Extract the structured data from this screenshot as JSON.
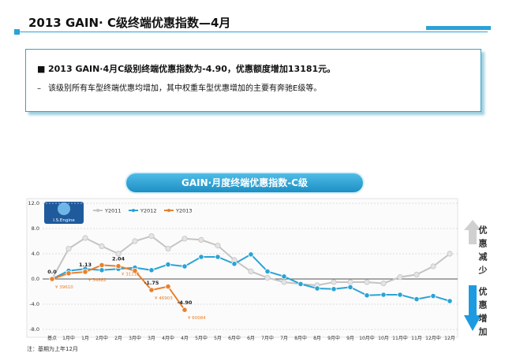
{
  "header": {
    "title": "2013 GAIN· C级终端优惠指数—4月"
  },
  "summary": {
    "bullets": [
      "2013 GAIN·4月C级别终端优惠指数为-4.90，优惠额度增加13181元。",
      "该级别所有车型终端优惠均增加，其中权重车型优惠增加的主要有奔驰E级等。"
    ]
  },
  "logo": "I.S.Engine",
  "side_labels": {
    "up": "优惠减少",
    "down": "优惠增加"
  },
  "note": "注：基期为上年12月",
  "chart_data": {
    "type": "line",
    "title": "GAIN·月度终端优惠指数-C级",
    "categories": [
      "基点",
      "1月中",
      "1月",
      "2月中",
      "2月",
      "3月中",
      "3月",
      "4月中",
      "4月",
      "5月中",
      "5月",
      "6月中",
      "6月",
      "7月中",
      "7月",
      "8月中",
      "8月",
      "9月中",
      "9月",
      "10月中",
      "10月",
      "11月中",
      "11月",
      "12月中",
      "12月"
    ],
    "ylim": [
      -8,
      12
    ],
    "yticks": [
      {
        "value": -8,
        "label": "-8.0"
      },
      {
        "value": -4,
        "label": "-4.0"
      },
      {
        "value": 0,
        "label": "0.0"
      },
      {
        "value": 4,
        "label": "4.0"
      },
      {
        "value": 8,
        "label": "8.0"
      },
      {
        "value": 12,
        "label": "12.0"
      }
    ],
    "grid": true,
    "series": [
      {
        "name": "Y2011",
        "color": "#c4c4c4",
        "values": [
          0,
          4.8,
          6.5,
          5.2,
          4.0,
          6.0,
          6.8,
          4.8,
          6.4,
          6.2,
          5.3,
          3.0,
          1.2,
          0.2,
          -0.5,
          -0.8,
          -1.0,
          -0.5,
          -0.5,
          -0.5,
          -0.7,
          0.3,
          0.7,
          2.0,
          4.0
        ]
      },
      {
        "name": "Y2012",
        "color": "#29a3d6",
        "values": [
          0,
          1.3,
          1.6,
          1.4,
          1.6,
          1.8,
          1.4,
          2.3,
          2.0,
          3.5,
          3.5,
          2.4,
          3.9,
          1.2,
          0.4,
          -0.8,
          -1.5,
          -1.6,
          -1.3,
          -2.6,
          -2.5,
          -2.5,
          -3.2,
          -2.7,
          -3.5
        ]
      },
      {
        "name": "Y2013",
        "color": "#e8802c",
        "values": [
          0,
          0.9,
          1.13,
          2.2,
          2.04,
          1.3,
          -1.75,
          -1.2,
          -4.9,
          null,
          null,
          null,
          null,
          null,
          null,
          null,
          null,
          null,
          null,
          null,
          null,
          null,
          null,
          null,
          null
        ],
        "value_labels": [
          "0.0",
          null,
          "1.13",
          null,
          "2.04",
          null,
          "-1.75",
          null,
          "-4.90",
          null,
          null,
          null,
          null,
          null,
          null,
          null,
          null,
          null,
          null,
          null,
          null,
          null,
          null,
          null,
          null
        ],
        "amount_labels": [
          "¥ 39610",
          null,
          "¥ 34882",
          null,
          "¥ 31112",
          null,
          "¥ 46903",
          null,
          "¥ 60084",
          null,
          null,
          null,
          null,
          null,
          null,
          null,
          null,
          null,
          null,
          null,
          null,
          null,
          null,
          null,
          null
        ]
      }
    ]
  }
}
